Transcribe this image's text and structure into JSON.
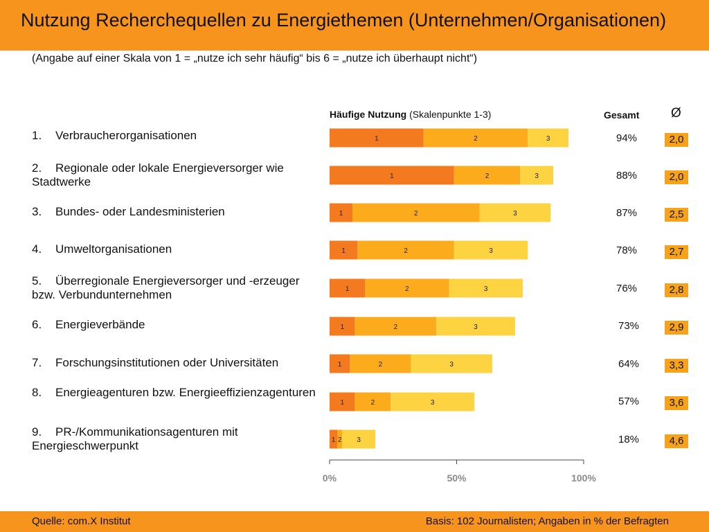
{
  "header": {
    "title": "Nutzung Recherchequellen zu Energiethemen (Unternehmen/Organisationen)",
    "subtitle": "(Angabe auf einer Skala von 1 = „nutze ich sehr häufig“ bis 6 = „nutze ich überhaupt nicht“)"
  },
  "columns": {
    "bars_bold": "Häufige Nutzung",
    "bars_rest": " (Skalenpunkte 1-3)",
    "total": "Gesamt",
    "avg": "Ø"
  },
  "rows": [
    {
      "num": "1.",
      "label": "Verbraucherorganisationen",
      "total": "94%",
      "avg": "2,0"
    },
    {
      "num": "2.",
      "label": "Regionale oder lokale Energieversorger wie Stadtwerke",
      "total": "88%",
      "avg": "2,0"
    },
    {
      "num": "3.",
      "label": "Bundes- oder Landesministerien",
      "total": "87%",
      "avg": "2,5"
    },
    {
      "num": "4.",
      "label": "Umweltorganisationen",
      "total": "78%",
      "avg": "2,7"
    },
    {
      "num": "5.",
      "label": "Überregionale Energieversorger und -erzeuger bzw. Verbundunternehmen",
      "total": "76%",
      "avg": "2,8"
    },
    {
      "num": "6.",
      "label": "Energieverbände",
      "total": "73%",
      "avg": "2,9"
    },
    {
      "num": "7.",
      "label": "Forschungsinstitutionen oder Universitäten",
      "total": "64%",
      "avg": "3,3"
    },
    {
      "num": "8.",
      "label": "Energieagenturen bzw. Energieeffizienzagenturen",
      "total": "57%",
      "avg": "3,6"
    },
    {
      "num": "9.",
      "label": "PR-/Kommunikationsagenturen mit Energieschwerpunkt",
      "total": "18%",
      "avg": "4,6"
    }
  ],
  "chart_data": {
    "type": "bar",
    "orientation": "horizontal",
    "stacked": true,
    "categories": [
      "Verbraucherorganisationen",
      "Regionale oder lokale Energieversorger wie Stadtwerke",
      "Bundes- oder Landesministerien",
      "Umweltorganisationen",
      "Überregionale Energieversorger und -erzeuger bzw. Verbundunternehmen",
      "Energieverbände",
      "Forschungsinstitutionen oder Universitäten",
      "Energieagenturen bzw. Energieeffizienzagenturen",
      "PR-/Kommunikationsagenturen mit Energieschwerpunkt"
    ],
    "series": [
      {
        "name": "1",
        "color": "#f47a1f",
        "values": [
          37,
          49,
          9,
          11,
          14,
          10,
          8,
          10,
          3
        ]
      },
      {
        "name": "2",
        "color": "#fbab1c",
        "values": [
          41,
          26,
          50,
          38,
          33,
          32,
          24,
          14,
          2
        ]
      },
      {
        "name": "3",
        "color": "#fdd342",
        "values": [
          16,
          13,
          28,
          29,
          29,
          31,
          32,
          33,
          13
        ]
      }
    ],
    "xlim": [
      0,
      100
    ],
    "xticks": [
      "0%",
      "50%",
      "100%"
    ],
    "grid": false
  },
  "footer": {
    "source": "Quelle: com.X Institut",
    "basis": "Basis: 102 Journalisten; Angaben in % der Befragten"
  }
}
